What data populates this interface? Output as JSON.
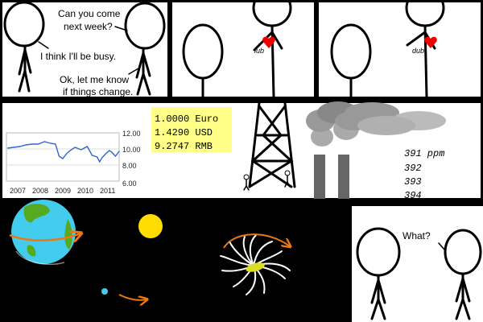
{
  "panel1": {
    "line1": "Can you come",
    "line2": "next week?",
    "reply1": "I think I'll be busy.",
    "reply2_1": "Ok, let me know",
    "reply2_2": "if things change."
  },
  "panel2": {
    "heart_label": "lub"
  },
  "panel3": {
    "heart_label": "dub"
  },
  "currency": {
    "rows": [
      "1.0000 Euro",
      "1.4290 USD",
      "9.2747 RMB"
    ],
    "highlight_color": "#ffff88"
  },
  "chart_data": {
    "type": "line",
    "x_tick_labels": [
      "2007",
      "2008",
      "2009",
      "2010",
      "2011"
    ],
    "y_tick_labels": [
      "12.00",
      "10.00",
      "8.00",
      "6.00"
    ],
    "ylim": [
      6,
      12
    ],
    "xlim": [
      2006.7,
      2011.3
    ],
    "series": [
      {
        "color": "#3366cc",
        "x": [
          2006.75,
          2007.0,
          2007.25,
          2007.5,
          2007.75,
          2008.0,
          2008.25,
          2008.5,
          2008.7,
          2008.85,
          2009.0,
          2009.15,
          2009.3,
          2009.5,
          2009.75,
          2010.0,
          2010.2,
          2010.4,
          2010.5,
          2010.6,
          2010.75,
          2010.9,
          2011.0,
          2011.15,
          2011.3
        ],
        "y": [
          10.1,
          10.2,
          10.3,
          10.5,
          10.6,
          10.6,
          10.9,
          10.7,
          10.6,
          9.1,
          8.8,
          9.4,
          9.8,
          10.2,
          9.9,
          10.3,
          9.2,
          9.0,
          8.4,
          8.9,
          9.4,
          9.8,
          9.6,
          9.1,
          9.7
        ]
      }
    ]
  },
  "co2": {
    "readings": [
      "391 ppm",
      "392",
      "393",
      "394"
    ]
  },
  "colors": {
    "sun": "#ffdd00",
    "earth_ocean": "#44ccee",
    "earth_land": "#55aa22",
    "orbit_arrow": "#ee7711",
    "galaxy_core": "#dddd22",
    "smoke": "#999999",
    "chimney": "#666666",
    "heart": "#ee0000"
  },
  "panel_last": {
    "speech": "What?"
  }
}
